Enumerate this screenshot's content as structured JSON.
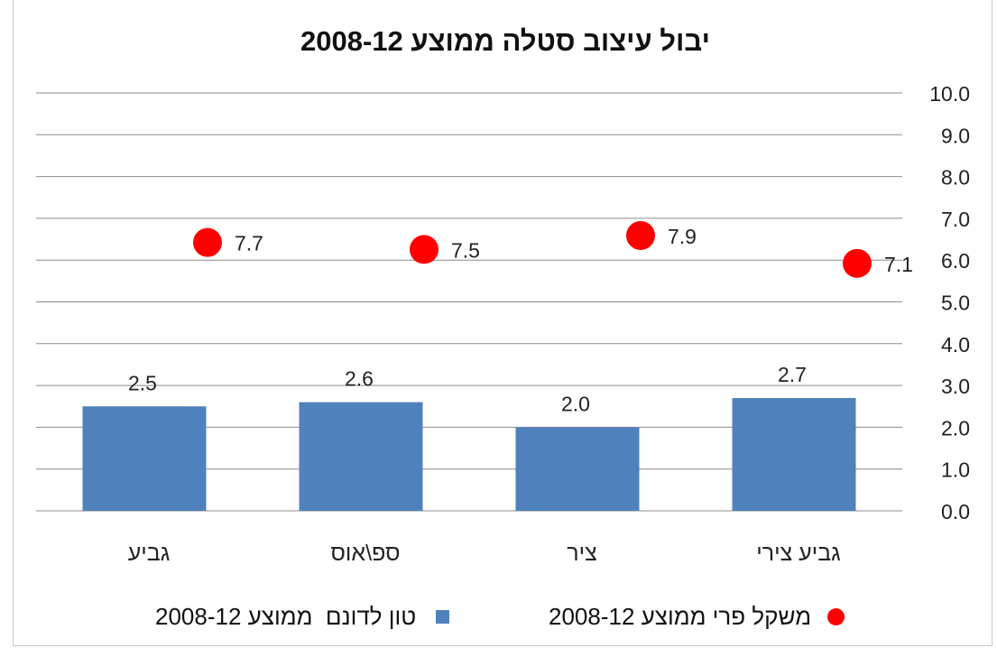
{
  "chart_data": {
    "type": "bar",
    "title": "יבול עיצוב סטלה ממוצע 2008-12",
    "categories": [
      "גביע",
      "ספ\\אוס",
      "ציר",
      "גביע צירי"
    ],
    "series": [
      {
        "name": "טון לדונם  ממוצע 2008-12",
        "type": "bar",
        "values": [
          2.5,
          2.6,
          2.0,
          2.7
        ],
        "color": "#4f81bd"
      },
      {
        "name": "משקל פרי ממוצע 2008-12",
        "type": "scatter",
        "values": [
          7.7,
          7.5,
          7.9,
          7.1
        ],
        "color": "#ff0000"
      }
    ],
    "y_ticks": [
      "0.0",
      "1.0",
      "2.0",
      "3.0",
      "4.0",
      "5.0",
      "6.0",
      "7.0",
      "8.0",
      "9.0",
      "10.0"
    ],
    "ylim": [
      0,
      10
    ],
    "y_axis_position": "right",
    "grid": true,
    "legend": "bottom"
  }
}
